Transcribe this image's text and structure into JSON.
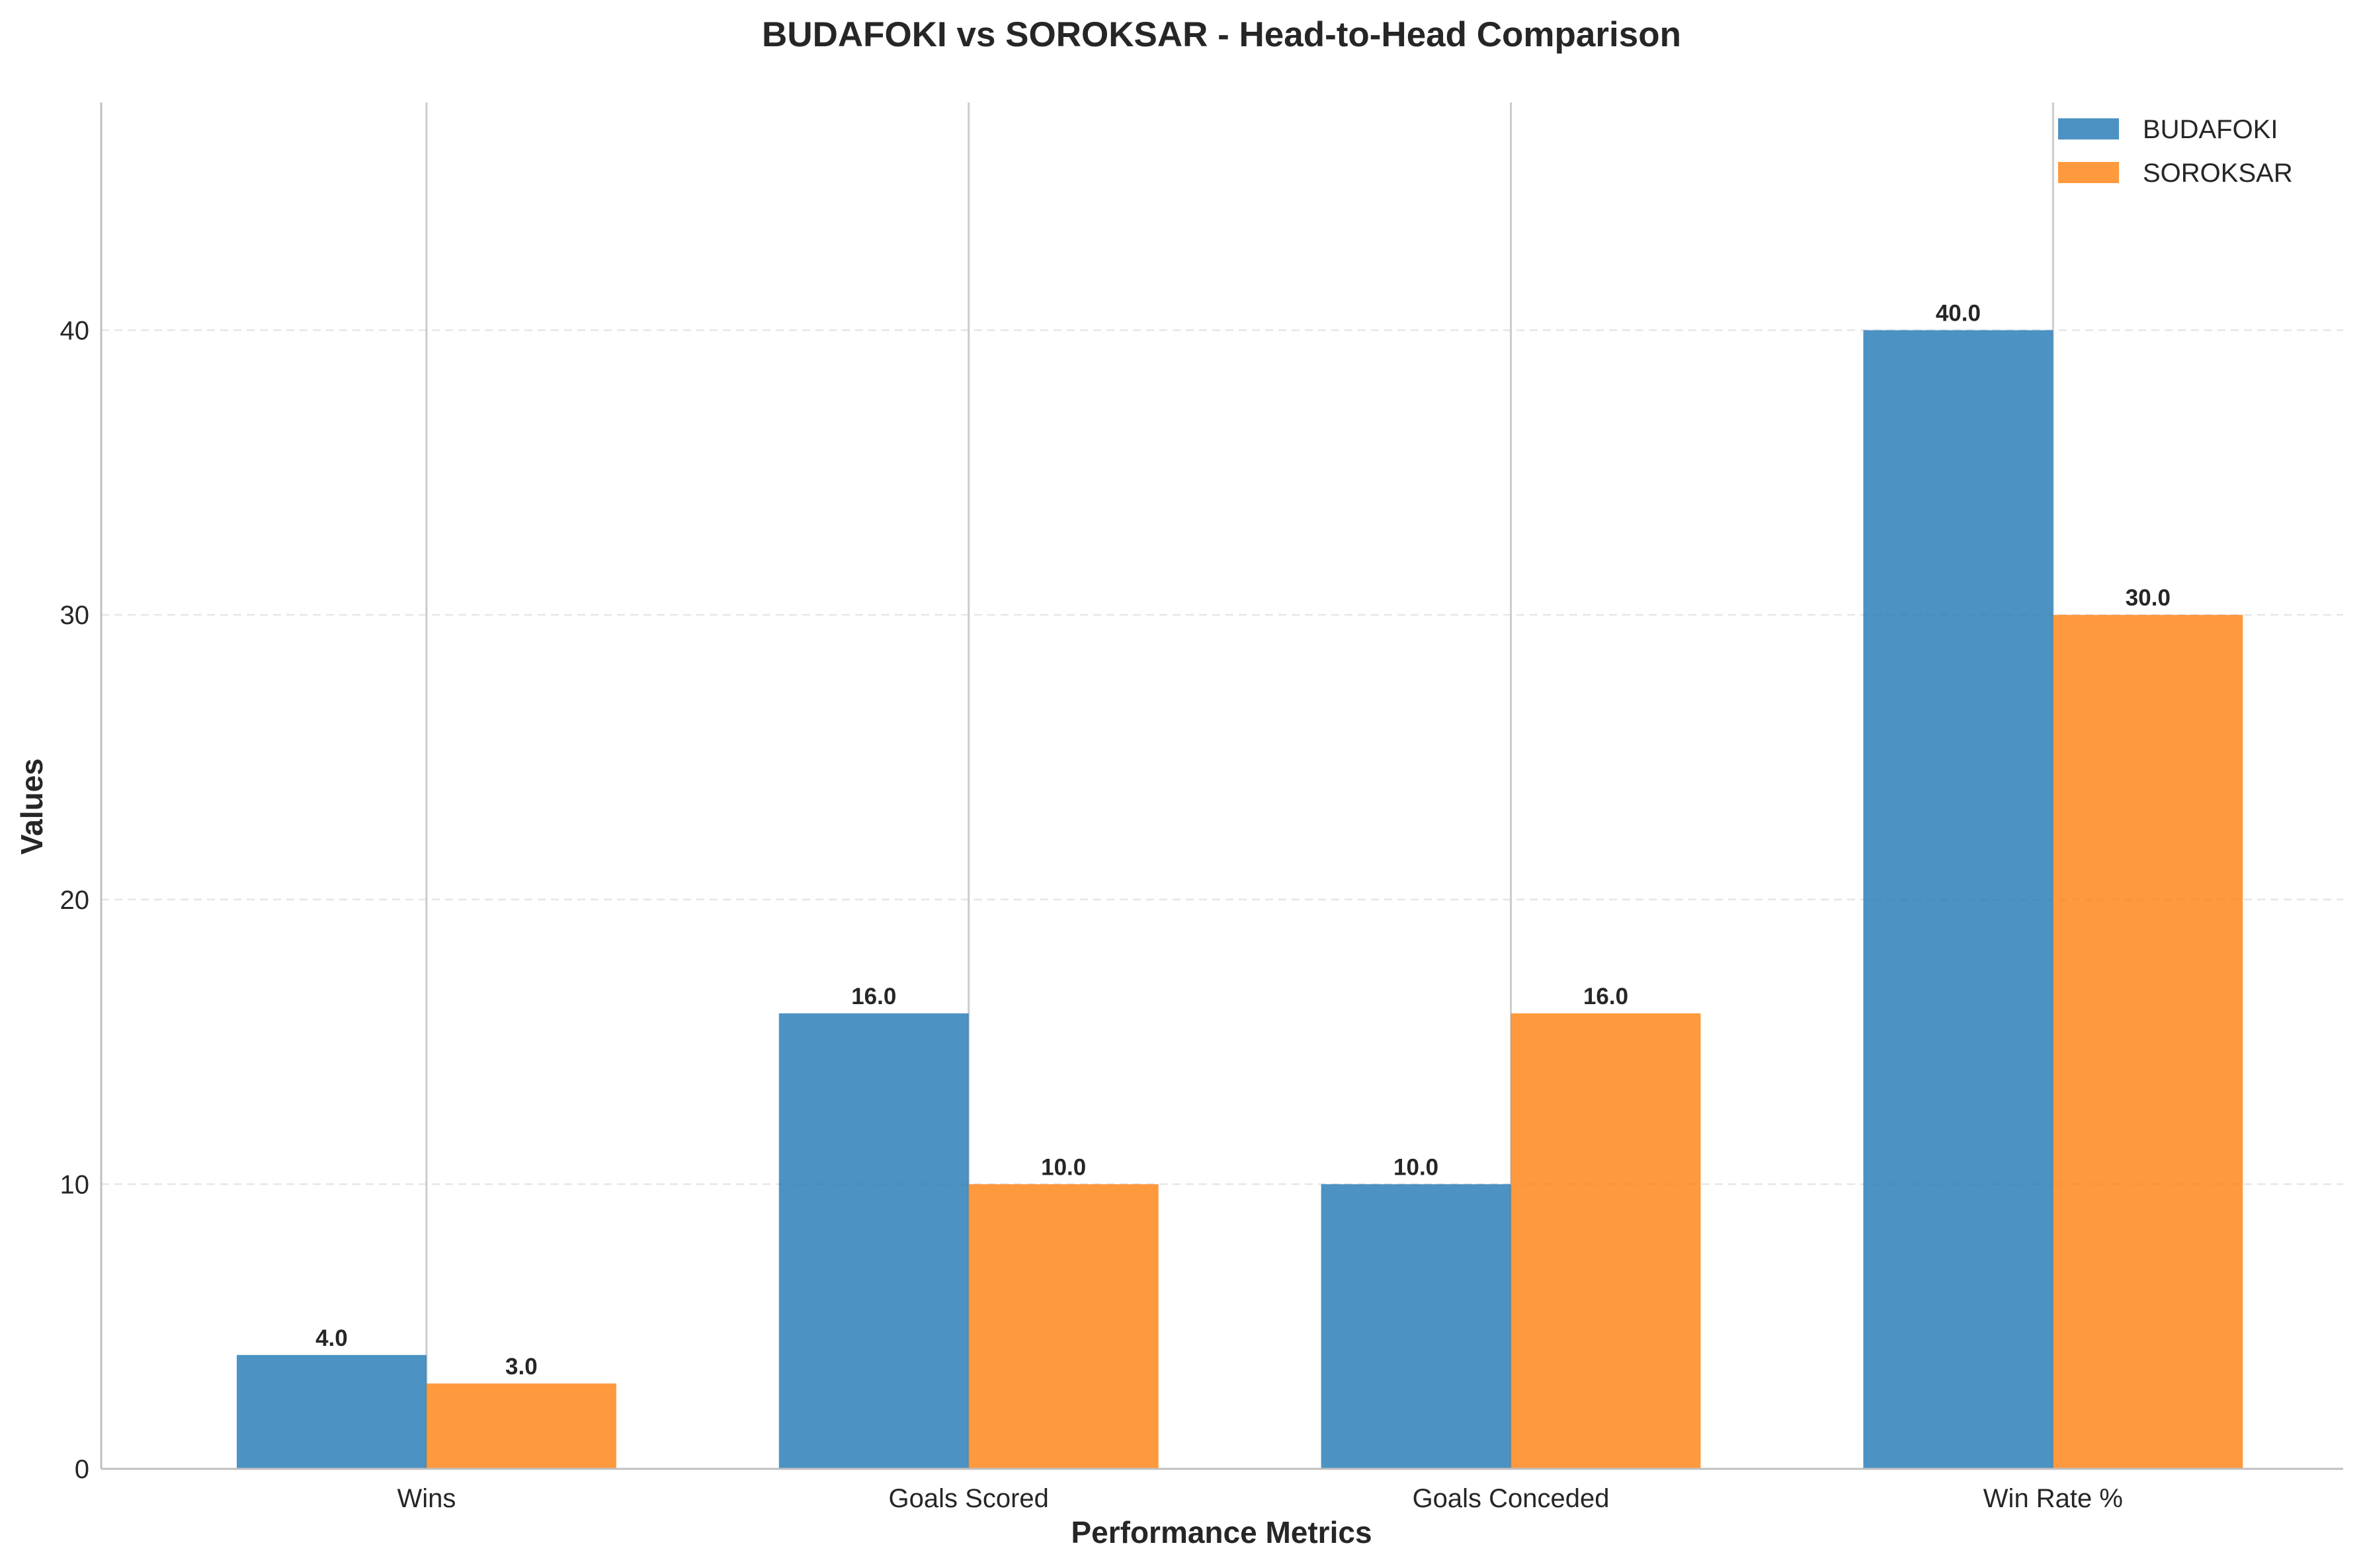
{
  "chart_data": {
    "type": "bar",
    "title": "BUDAFOKI vs SOROKSAR - Head-to-Head Comparison",
    "xlabel": "Performance Metrics",
    "ylabel": "Values",
    "categories": [
      "Wins",
      "Goals Scored",
      "Goals Conceded",
      "Win Rate %"
    ],
    "series": [
      {
        "name": "BUDAFOKI",
        "color": "#1f77b4",
        "values": [
          4.0,
          16.0,
          10.0,
          40.0
        ],
        "labels": [
          "4.0",
          "16.0",
          "10.0",
          "40.0"
        ]
      },
      {
        "name": "SOROKSAR",
        "color": "#ff7f0e",
        "values": [
          3.0,
          10.0,
          16.0,
          30.0
        ],
        "labels": [
          "3.0",
          "10.0",
          "16.0",
          "30.0"
        ]
      }
    ],
    "ylim": [
      0,
      48
    ],
    "yticks": [
      0,
      10,
      20,
      30,
      40
    ],
    "ytick_labels": [
      "0",
      "10",
      "20",
      "30",
      "40"
    ],
    "grid": "y-dashed",
    "legend": "top-right"
  }
}
